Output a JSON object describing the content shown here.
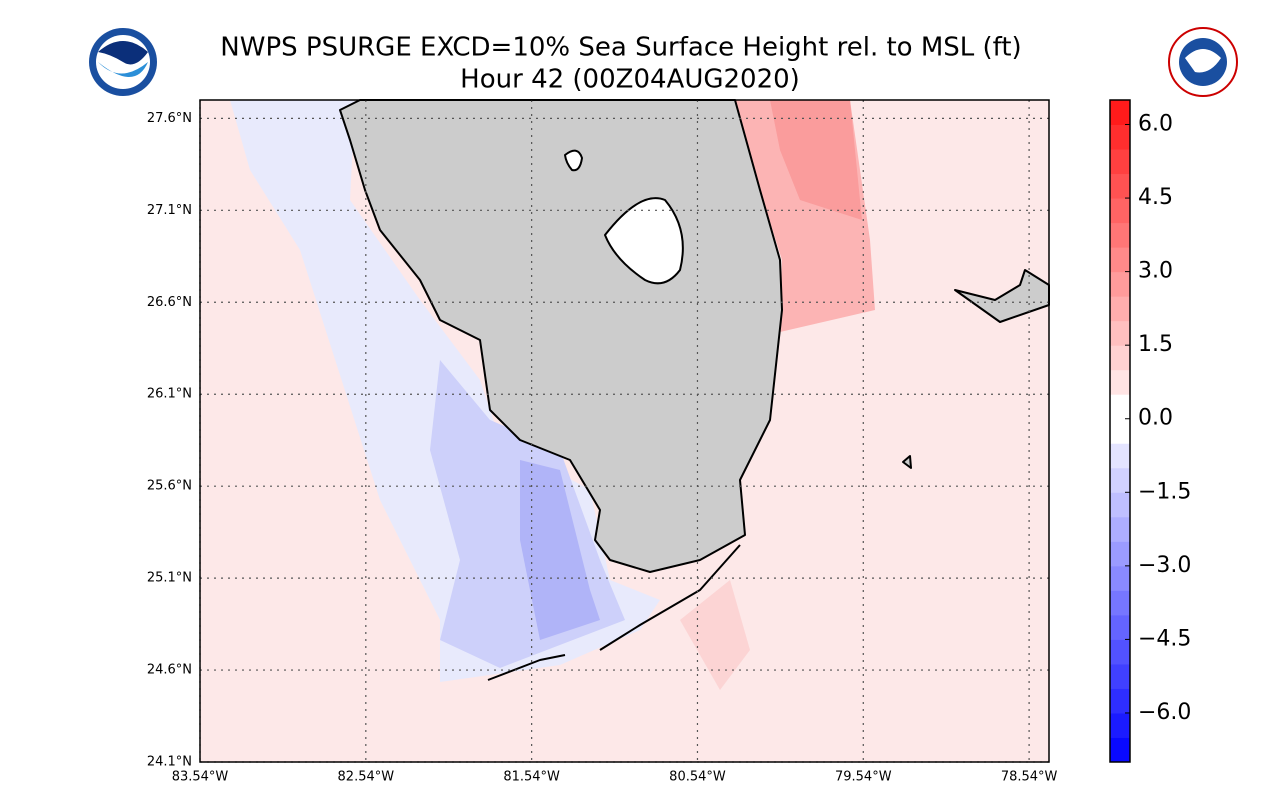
{
  "chart_data": {
    "type": "map",
    "title": "NWPS PSURGE EXCD=10% Sea Surface Height rel. to MSL (ft)",
    "subtitle": "Hour 42 (00Z04AUG2020)",
    "xlim": [
      -83.54,
      -78.42
    ],
    "ylim": [
      24.1,
      27.7
    ],
    "grid": true,
    "xticks": [
      {
        "value": -83.54,
        "label": "83.54°W"
      },
      {
        "value": -82.54,
        "label": "82.54°W"
      },
      {
        "value": -81.54,
        "label": "81.54°W"
      },
      {
        "value": -80.54,
        "label": "80.54°W"
      },
      {
        "value": -79.54,
        "label": "79.54°W"
      },
      {
        "value": -78.54,
        "label": "78.54°W"
      }
    ],
    "yticks": [
      {
        "value": 24.1,
        "label": "24.1°N"
      },
      {
        "value": 24.6,
        "label": "24.6°N"
      },
      {
        "value": 25.1,
        "label": "25.1°N"
      },
      {
        "value": 25.6,
        "label": "25.6°N"
      },
      {
        "value": 26.1,
        "label": "26.1°N"
      },
      {
        "value": 26.6,
        "label": "26.6°N"
      },
      {
        "value": 27.1,
        "label": "27.1°N"
      },
      {
        "value": 27.6,
        "label": "27.6°N"
      }
    ],
    "colorbar": {
      "lim": [
        -7,
        6.5
      ],
      "colors": [
        "#0000ff",
        "#ffffff",
        "#ff0000"
      ],
      "ticks": [
        {
          "value": 6,
          "label": "6.0"
        },
        {
          "value": 4.5,
          "label": "4.5"
        },
        {
          "value": 3,
          "label": "3.0"
        },
        {
          "value": 1.5,
          "label": "1.5"
        },
        {
          "value": 0,
          "label": "0.0"
        },
        {
          "value": -1.5,
          "label": "−1.5"
        },
        {
          "value": -3,
          "label": "−3.0"
        },
        {
          "value": -4.5,
          "label": "−4.5"
        },
        {
          "value": -6,
          "label": "−6.0"
        }
      ]
    }
  }
}
